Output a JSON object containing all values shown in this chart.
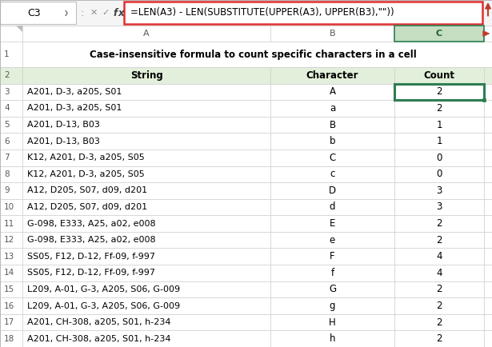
{
  "formula_bar_cell": "C3",
  "formula_bar_text": "=LEN(A3) - LEN(SUBSTITUTE(UPPER(A3), UPPER(B3),\"\"))",
  "title": "Case-insensitive formula to count specific characters in a cell",
  "headers": [
    "String",
    "Character",
    "Count"
  ],
  "col_letters": [
    "A",
    "B",
    "C"
  ],
  "rows": [
    {
      "string": "A201, D-3, a205, S01",
      "char": "A",
      "count": 2
    },
    {
      "string": "A201, D-3, a205, S01",
      "char": "a",
      "count": 2
    },
    {
      "string": "A201, D-13, B03",
      "char": "B",
      "count": 1
    },
    {
      "string": "A201, D-13, B03",
      "char": "b",
      "count": 1
    },
    {
      "string": "K12, A201, D-3, a205, S05",
      "char": "C",
      "count": 0
    },
    {
      "string": "K12, A201, D-3, a205, S05",
      "char": "c",
      "count": 0
    },
    {
      "string": "A12, D205, S07, d09, d201",
      "char": "D",
      "count": 3
    },
    {
      "string": "A12, D205, S07, d09, d201",
      "char": "d",
      "count": 3
    },
    {
      "string": "G-098, E333, A25, a02, e008",
      "char": "E",
      "count": 2
    },
    {
      "string": "G-098, E333, A25, a02, e008",
      "char": "e",
      "count": 2
    },
    {
      "string": "SS05, F12, D-12, Ff-09, f-997",
      "char": "F",
      "count": 4
    },
    {
      "string": "SS05, F12, D-12, Ff-09, f-997",
      "char": "f",
      "count": 4
    },
    {
      "string": "L209, A-01, G-3, A205, S06, G-009",
      "char": "G",
      "count": 2
    },
    {
      "string": "L209, A-01, G-3, A205, S06, G-009",
      "char": "g",
      "count": 2
    },
    {
      "string": "A201, CH-308, a205, S01, h-234",
      "char": "H",
      "count": 2
    },
    {
      "string": "A201, CH-308, a205, S01, h-234",
      "char": "h",
      "count": 2
    }
  ],
  "colors": {
    "header_row_bg": "#E2EFDA",
    "active_cell_border": "#2E7D52",
    "active_col_header_bg": "#C6DEC2",
    "active_col_header_text": "#1A6030",
    "formula_bar_border": "#E03030",
    "arrow_color": "#C0392B",
    "grid_line": "#D0D0D0",
    "row_num_text": "#595959",
    "col_header_text": "#595959",
    "data_text": "#000000",
    "title_text": "#000000",
    "header_text": "#000000"
  },
  "row_numbers": [
    1,
    2,
    3,
    4,
    5,
    6,
    7,
    8,
    9,
    10,
    11,
    12,
    13,
    14,
    15,
    16,
    17,
    18
  ],
  "figsize": [
    6.15,
    4.34
  ],
  "dpi": 100
}
